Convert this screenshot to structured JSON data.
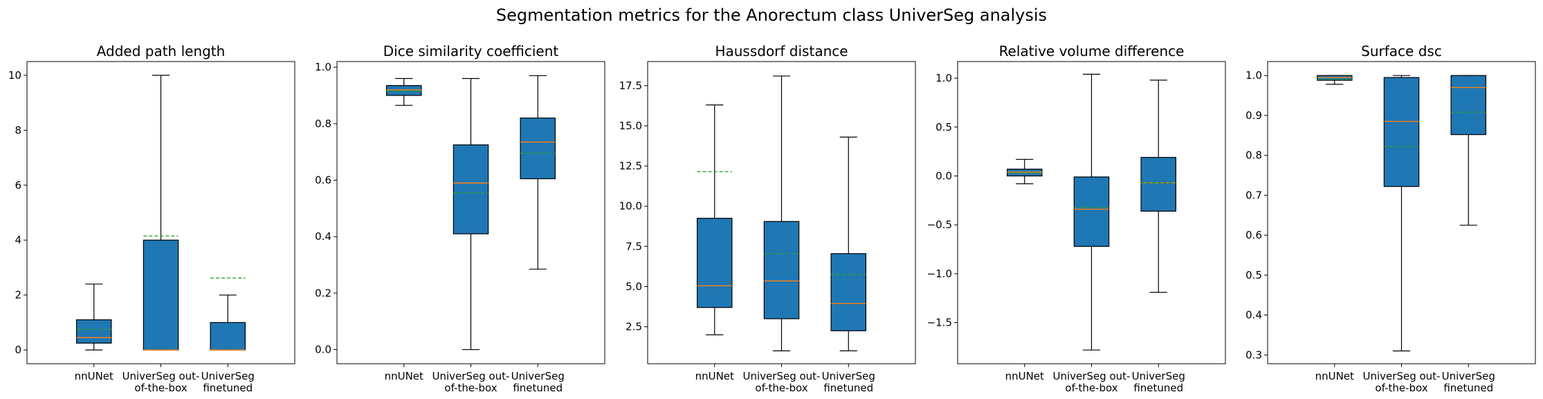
{
  "figure": {
    "suptitle": "Segmentation metrics for the Anorectum class UniverSeg analysis"
  },
  "chart_data": [
    {
      "type": "box",
      "title": "Added path length",
      "categories": [
        "nnUNet",
        "UniverSeg out-of-the-box",
        "UniverSeg finetuned"
      ],
      "category_lines": [
        [
          "nnUNet"
        ],
        [
          "UniverSeg out-",
          "of-the-box"
        ],
        [
          "UniverSeg",
          "finetuned"
        ]
      ],
      "ylim": [
        -0.5,
        10.5
      ],
      "yticks": [
        0,
        2,
        4,
        6,
        8,
        10
      ],
      "ytick_labels": [
        "0",
        "2",
        "4",
        "6",
        "8",
        "10"
      ],
      "boxes": [
        {
          "whislo": 0.0,
          "q1": 0.25,
          "med": 0.45,
          "q3": 1.1,
          "whishi": 2.4,
          "mean": 0.75
        },
        {
          "whislo": 0.0,
          "q1": 0.0,
          "med": 0.0,
          "q3": 4.0,
          "whishi": 10.0,
          "mean": 4.15
        },
        {
          "whislo": 0.0,
          "q1": 0.0,
          "med": 0.0,
          "q3": 1.0,
          "whishi": 2.0,
          "mean": 2.62
        }
      ]
    },
    {
      "type": "box",
      "title": "Dice similarity coefficient",
      "categories": [
        "nnUNet",
        "UniverSeg out-of-the-box",
        "UniverSeg finetuned"
      ],
      "category_lines": [
        [
          "nnUNet"
        ],
        [
          "UniverSeg out-",
          "of-the-box"
        ],
        [
          "UniverSeg",
          "finetuned"
        ]
      ],
      "ylim": [
        -0.05,
        1.02
      ],
      "yticks": [
        0.0,
        0.2,
        0.4,
        0.6,
        0.8,
        1.0
      ],
      "ytick_labels": [
        "0.0",
        "0.2",
        "0.4",
        "0.6",
        "0.8",
        "1.0"
      ],
      "boxes": [
        {
          "whislo": 0.865,
          "q1": 0.9,
          "med": 0.92,
          "q3": 0.935,
          "whishi": 0.96,
          "mean": 0.915
        },
        {
          "whislo": 0.0,
          "q1": 0.41,
          "med": 0.59,
          "q3": 0.725,
          "whishi": 0.96,
          "mean": 0.555
        },
        {
          "whislo": 0.285,
          "q1": 0.605,
          "med": 0.735,
          "q3": 0.82,
          "whishi": 0.97,
          "mean": 0.695
        }
      ]
    },
    {
      "type": "box",
      "title": "Haussdorf distance",
      "categories": [
        "nnUNet",
        "UniverSeg out-of-the-box",
        "UniverSeg finetuned"
      ],
      "category_lines": [
        [
          "nnUNet"
        ],
        [
          "UniverSeg out-",
          "of-the-box"
        ],
        [
          "UniverSeg",
          "finetuned"
        ]
      ],
      "ylim": [
        0.2,
        19.0
      ],
      "yticks": [
        2.5,
        5.0,
        7.5,
        10.0,
        12.5,
        15.0,
        17.5
      ],
      "ytick_labels": [
        "2.5",
        "5.0",
        "7.5",
        "10.0",
        "12.5",
        "15.0",
        "17.5"
      ],
      "boxes": [
        {
          "whislo": 2.0,
          "q1": 3.7,
          "med": 5.05,
          "q3": 9.25,
          "whishi": 16.3,
          "mean": 12.15
        },
        {
          "whislo": 1.0,
          "q1": 3.0,
          "med": 5.35,
          "q3": 9.05,
          "whishi": 18.1,
          "mean": 7.05
        },
        {
          "whislo": 1.0,
          "q1": 2.25,
          "med": 3.95,
          "q3": 7.05,
          "whishi": 14.3,
          "mean": 5.75
        }
      ]
    },
    {
      "type": "box",
      "title": "Relative volume difference",
      "categories": [
        "nnUNet",
        "UniverSeg out-of-the-box",
        "UniverSeg finetuned"
      ],
      "category_lines": [
        [
          "nnUNet"
        ],
        [
          "UniverSeg out-",
          "of-the-box"
        ],
        [
          "UniverSeg",
          "finetuned"
        ]
      ],
      "ylim": [
        -1.92,
        1.17
      ],
      "yticks": [
        -1.5,
        -1.0,
        -0.5,
        0.0,
        0.5,
        1.0
      ],
      "ytick_labels": [
        "−1.5",
        "−1.0",
        "−0.5",
        "0.0",
        "0.5",
        "1.0"
      ],
      "boxes": [
        {
          "whislo": -0.08,
          "q1": 0.0,
          "med": 0.04,
          "q3": 0.07,
          "whishi": 0.17,
          "mean": 0.03
        },
        {
          "whislo": -1.78,
          "q1": -0.72,
          "med": -0.34,
          "q3": -0.01,
          "whishi": 1.04,
          "mean": -0.32
        },
        {
          "whislo": -1.19,
          "q1": -0.36,
          "med": -0.07,
          "q3": 0.19,
          "whishi": 0.98,
          "mean": -0.07
        }
      ]
    },
    {
      "type": "box",
      "title": "Surface dsc",
      "categories": [
        "nnUNet",
        "UniverSeg out-of-the-box",
        "UniverSeg finetuned"
      ],
      "category_lines": [
        [
          "nnUNet"
        ],
        [
          "UniverSeg out-",
          "of-the-box"
        ],
        [
          "UniverSeg",
          "finetuned"
        ]
      ],
      "ylim": [
        0.278,
        1.035
      ],
      "yticks": [
        0.3,
        0.4,
        0.5,
        0.6,
        0.7,
        0.8,
        0.9,
        1.0
      ],
      "ytick_labels": [
        "0.3",
        "0.4",
        "0.5",
        "0.6",
        "0.7",
        "0.8",
        "0.9",
        "1.0"
      ],
      "boxes": [
        {
          "whislo": 0.978,
          "q1": 0.988,
          "med": 0.995,
          "q3": 1.0,
          "whishi": 1.0,
          "mean": 0.99
        },
        {
          "whislo": 0.31,
          "q1": 0.722,
          "med": 0.885,
          "q3": 0.995,
          "whishi": 1.0,
          "mean": 0.822
        },
        {
          "whislo": 0.625,
          "q1": 0.852,
          "med": 0.97,
          "q3": 1.0,
          "whishi": 1.0,
          "mean": 0.908
        }
      ]
    }
  ],
  "colors": {
    "box_fill": "#1f77b4",
    "median": "#ff7f0e",
    "mean": "#2ca02c",
    "axis": "#000000"
  }
}
